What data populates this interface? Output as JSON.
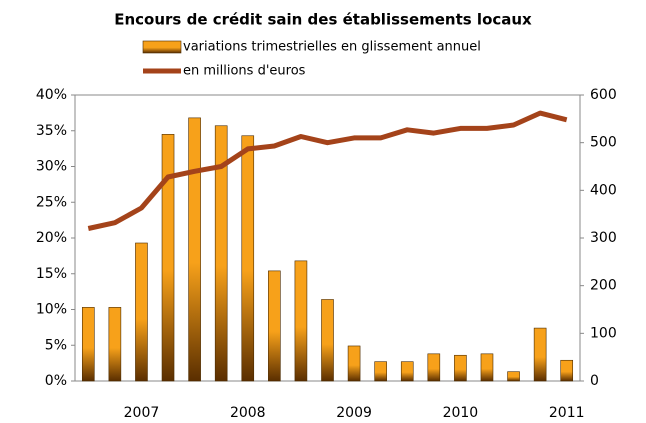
{
  "chart_data": {
    "type": "bar_line",
    "title": "Encours de crédit sain des établissements locaux",
    "categories": [
      null,
      null,
      "2007",
      null,
      null,
      null,
      "2008",
      null,
      null,
      null,
      "2009",
      null,
      null,
      null,
      "2010",
      null,
      null,
      null,
      "2011"
    ],
    "series": [
      {
        "name": "variations trimestrielles en glissement annuel",
        "type": "bar",
        "color": "#f7a11a",
        "values": [
          10.3,
          10.3,
          19.3,
          34.5,
          36.8,
          35.7,
          34.3,
          15.4,
          16.8,
          11.4,
          4.9,
          2.7,
          2.7,
          3.8,
          3.6,
          3.8,
          1.3,
          7.4,
          2.9
        ]
      },
      {
        "name": "en millions d'euros",
        "type": "line",
        "axis": "y2",
        "color": "#a4431a",
        "values": [
          320,
          332,
          363,
          428,
          440,
          450,
          487,
          493,
          513,
          500,
          510,
          510,
          527,
          520,
          530,
          530,
          537,
          562,
          548
        ]
      }
    ],
    "ylim": [
      0,
      40
    ],
    "yticks": [
      {
        "value": 0,
        "label": "0%"
      },
      {
        "value": 5,
        "label": "5%"
      },
      {
        "value": 10,
        "label": "10%"
      },
      {
        "value": 15,
        "label": "15%"
      },
      {
        "value": 20,
        "label": "20%"
      },
      {
        "value": 25,
        "label": "25%"
      },
      {
        "value": 30,
        "label": "30%"
      },
      {
        "value": 35,
        "label": "35%"
      },
      {
        "value": 40,
        "label": "40%"
      }
    ],
    "y2lim": [
      0,
      600
    ],
    "y2ticks": [
      0,
      100,
      200,
      300,
      400,
      500,
      600
    ],
    "grid": false
  }
}
